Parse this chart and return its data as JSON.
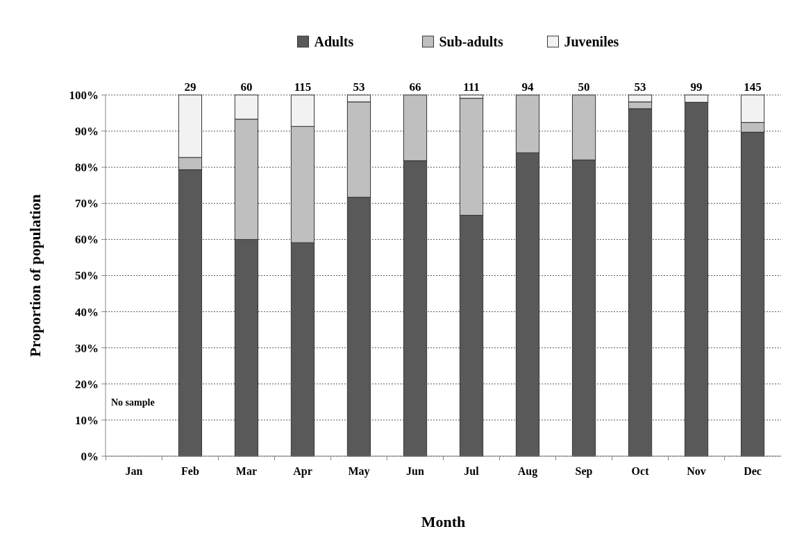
{
  "chart_data": {
    "type": "bar",
    "stacked": true,
    "xlabel": "Month",
    "ylabel": "Proportion of population",
    "categories": [
      "Jan",
      "Feb",
      "Mar",
      "Apr",
      "May",
      "Jun",
      "Jul",
      "Aug",
      "Sep",
      "Oct",
      "Nov",
      "Dec"
    ],
    "series": [
      {
        "name": "Adults",
        "color": "#595959",
        "values": [
          null,
          79.3,
          60,
          59.1,
          71.7,
          81.8,
          66.7,
          84,
          82,
          96.2,
          98,
          89.7
        ]
      },
      {
        "name": "Sub-adults",
        "color": "#bfbfbf",
        "values": [
          null,
          3.4,
          33.3,
          32.2,
          26.4,
          18.2,
          32.4,
          16,
          18,
          1.9,
          0,
          2.7
        ]
      },
      {
        "name": "Juveniles",
        "color": "#f2f2f2",
        "values": [
          null,
          17.3,
          6.7,
          8.7,
          1.9,
          0,
          0.9,
          0,
          0,
          1.9,
          2,
          7.6
        ]
      }
    ],
    "ylim": [
      0,
      100
    ],
    "yticks": [
      {
        "value": 0,
        "label": "0%"
      },
      {
        "value": 10,
        "label": "10%"
      },
      {
        "value": 20,
        "label": "20%"
      },
      {
        "value": 30,
        "label": "30%"
      },
      {
        "value": 40,
        "label": "40%"
      },
      {
        "value": 50,
        "label": "50%"
      },
      {
        "value": 60,
        "label": "60%"
      },
      {
        "value": 70,
        "label": "70%"
      },
      {
        "value": 80,
        "label": "80%"
      },
      {
        "value": 90,
        "label": "90%"
      },
      {
        "value": 100,
        "label": "100%"
      }
    ],
    "grid": "y",
    "legend": "top",
    "annotations": [
      "No sample",
      {
        "text": "29",
        "x": "Feb",
        "y": 100
      },
      {
        "text": "60",
        "x": "Mar",
        "y": 100
      },
      {
        "text": "115",
        "x": "Apr",
        "y": 100
      },
      {
        "text": "53",
        "x": "May",
        "y": 100
      },
      {
        "text": "66",
        "x": "Jun",
        "y": 100
      },
      {
        "text": "111",
        "x": "Jul",
        "y": 100
      },
      {
        "text": "94",
        "x": "Aug",
        "y": 100
      },
      {
        "text": "50",
        "x": "Sep",
        "y": 100
      },
      {
        "text": "53",
        "x": "Oct",
        "y": 100
      },
      {
        "text": "99",
        "x": "Nov",
        "y": 100
      },
      {
        "text": "145",
        "x": "Dec",
        "y": 100
      }
    ]
  }
}
